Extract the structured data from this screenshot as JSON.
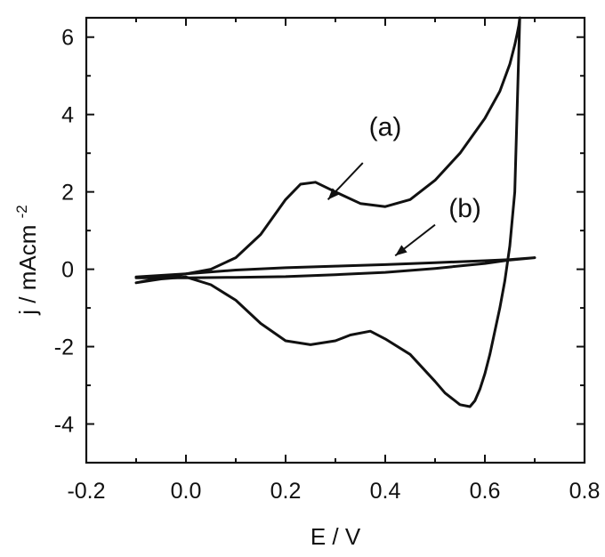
{
  "chart_data": {
    "type": "line",
    "xlabel": "E / V",
    "ylabel": "j / mAcm",
    "ylabel_sup": "-2",
    "xlim": [
      -0.2,
      0.8
    ],
    "ylim": [
      -5,
      6.5
    ],
    "xticks": [
      "-0.2",
      "0.0",
      "0.2",
      "0.4",
      "0.6",
      "0.8"
    ],
    "xtick_values": [
      -0.2,
      0.0,
      0.2,
      0.4,
      0.6,
      0.8
    ],
    "yticks": [
      "6",
      "4",
      "2",
      "0",
      "-2",
      "-4"
    ],
    "ytick_values": [
      6,
      4,
      2,
      0,
      -2,
      -4
    ],
    "grid": false,
    "series": [
      {
        "name": "(a)",
        "x": [
          -0.1,
          -0.05,
          0.0,
          0.05,
          0.1,
          0.15,
          0.2,
          0.23,
          0.26,
          0.3,
          0.35,
          0.4,
          0.45,
          0.5,
          0.55,
          0.6,
          0.63,
          0.65,
          0.66,
          0.665,
          0.668,
          0.67,
          0.66,
          0.65,
          0.64,
          0.63,
          0.62,
          0.61,
          0.6,
          0.59,
          0.58,
          0.57,
          0.55,
          0.52,
          0.5,
          0.45,
          0.4,
          0.37,
          0.33,
          0.3,
          0.25,
          0.2,
          0.15,
          0.1,
          0.05,
          0.0,
          -0.05,
          -0.1
        ],
        "y": [
          -0.35,
          -0.22,
          -0.12,
          0.0,
          0.3,
          0.9,
          1.8,
          2.2,
          2.25,
          2.0,
          1.7,
          1.62,
          1.8,
          2.3,
          3.0,
          3.9,
          4.6,
          5.3,
          5.8,
          6.1,
          6.3,
          6.5,
          2.0,
          0.6,
          -0.3,
          -1.0,
          -1.6,
          -2.2,
          -2.7,
          -3.1,
          -3.4,
          -3.55,
          -3.5,
          -3.2,
          -2.9,
          -2.2,
          -1.8,
          -1.6,
          -1.7,
          -1.85,
          -1.95,
          -1.85,
          -1.4,
          -0.8,
          -0.4,
          -0.2,
          -0.25,
          -0.35
        ]
      },
      {
        "name": "(b)",
        "x": [
          -0.1,
          0.0,
          0.1,
          0.2,
          0.3,
          0.4,
          0.5,
          0.6,
          0.65,
          0.7,
          0.65,
          0.6,
          0.5,
          0.4,
          0.3,
          0.2,
          0.1,
          0.0,
          -0.1
        ],
        "y": [
          -0.2,
          -0.12,
          -0.02,
          0.04,
          0.08,
          0.12,
          0.17,
          0.22,
          0.25,
          0.3,
          0.24,
          0.15,
          0.02,
          -0.08,
          -0.14,
          -0.19,
          -0.21,
          -0.22,
          -0.22
        ]
      }
    ],
    "annotations": [
      {
        "text": "(a)",
        "tx": 0.4,
        "ty": 3.45,
        "ax": 0.355,
        "ay": 2.75,
        "hx": 0.285,
        "hy": 1.8
      },
      {
        "text": "(b)",
        "tx": 0.56,
        "ty": 1.35,
        "ax": 0.5,
        "ay": 1.15,
        "hx": 0.42,
        "hy": 0.35
      }
    ]
  }
}
